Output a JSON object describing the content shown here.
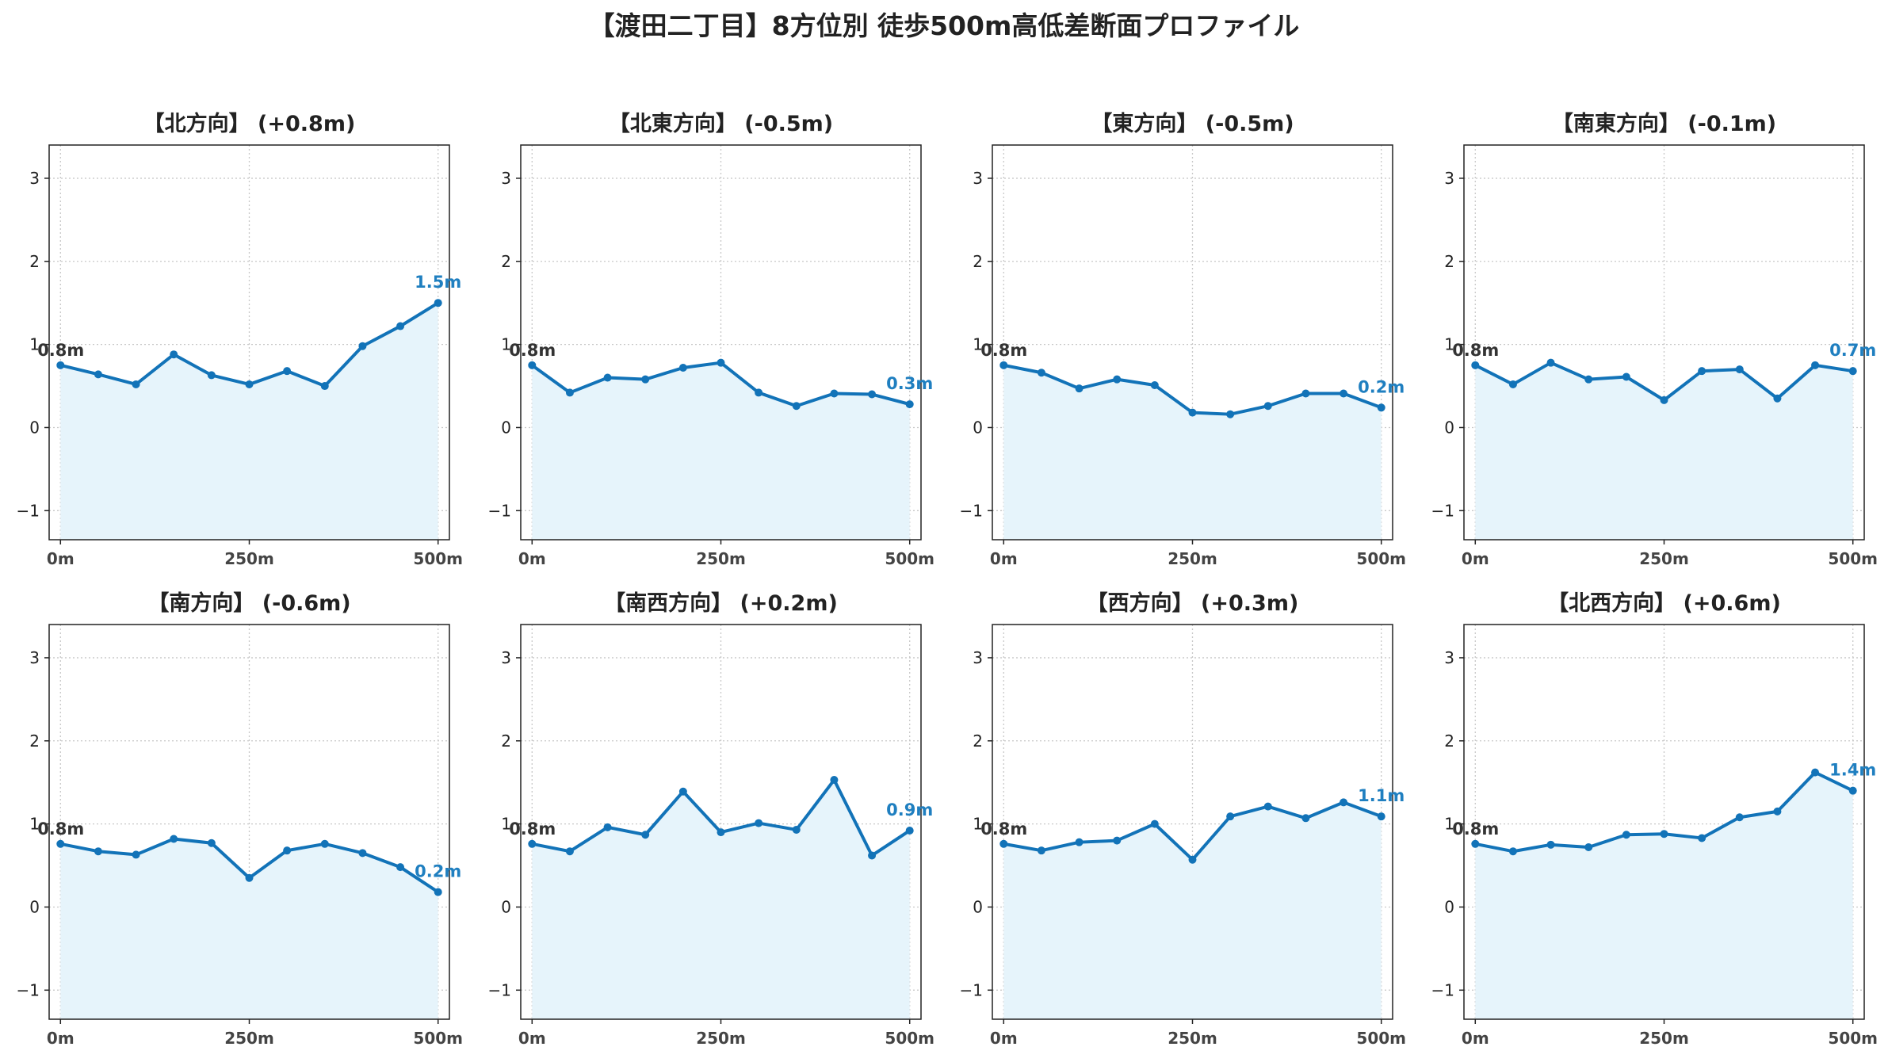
{
  "title": "【渡田二丁目】8方位別 徒歩500m高低差断面プロファイル",
  "colors": {
    "line": "#1273b8",
    "fill": "#e6f4fb",
    "grid": "#c8c8c8",
    "end_label": "#1f7fc0",
    "start_label": "#333333"
  },
  "chart_data": [
    {
      "type": "line",
      "title": "【北方向】 (+0.8m)",
      "x": [
        0,
        50,
        100,
        150,
        200,
        250,
        300,
        350,
        400,
        450,
        500
      ],
      "y": [
        0.75,
        0.64,
        0.52,
        0.88,
        0.63,
        0.52,
        0.68,
        0.5,
        0.98,
        1.22,
        1.5
      ],
      "x_ticks": [
        "0m",
        "250m",
        "500m"
      ],
      "y_ticks": [
        "−1",
        "0",
        "1",
        "2",
        "3"
      ],
      "ylim": [
        -1.35,
        3.4
      ],
      "grid": true,
      "start_label": "0.8m",
      "end_label": "1.5m"
    },
    {
      "type": "line",
      "title": "【北東方向】 (-0.5m)",
      "x": [
        0,
        50,
        100,
        150,
        200,
        250,
        300,
        350,
        400,
        450,
        500
      ],
      "y": [
        0.75,
        0.42,
        0.6,
        0.58,
        0.72,
        0.78,
        0.42,
        0.26,
        0.41,
        0.4,
        0.28
      ],
      "x_ticks": [
        "0m",
        "250m",
        "500m"
      ],
      "y_ticks": [
        "−1",
        "0",
        "1",
        "2",
        "3"
      ],
      "ylim": [
        -1.35,
        3.4
      ],
      "grid": true,
      "start_label": "0.8m",
      "end_label": "0.3m"
    },
    {
      "type": "line",
      "title": "【東方向】 (-0.5m)",
      "x": [
        0,
        50,
        100,
        150,
        200,
        250,
        300,
        350,
        400,
        450,
        500
      ],
      "y": [
        0.75,
        0.66,
        0.47,
        0.58,
        0.51,
        0.18,
        0.16,
        0.26,
        0.41,
        0.41,
        0.24
      ],
      "x_ticks": [
        "0m",
        "250m",
        "500m"
      ],
      "y_ticks": [
        "−1",
        "0",
        "1",
        "2",
        "3"
      ],
      "ylim": [
        -1.35,
        3.4
      ],
      "grid": true,
      "start_label": "0.8m",
      "end_label": "0.2m"
    },
    {
      "type": "line",
      "title": "【南東方向】 (-0.1m)",
      "x": [
        0,
        50,
        100,
        150,
        200,
        250,
        300,
        350,
        400,
        450,
        500
      ],
      "y": [
        0.75,
        0.52,
        0.78,
        0.58,
        0.61,
        0.33,
        0.68,
        0.7,
        0.35,
        0.75,
        0.68
      ],
      "x_ticks": [
        "0m",
        "250m",
        "500m"
      ],
      "y_ticks": [
        "−1",
        "0",
        "1",
        "2",
        "3"
      ],
      "ylim": [
        -1.35,
        3.4
      ],
      "grid": true,
      "start_label": "0.8m",
      "end_label": "0.7m"
    },
    {
      "type": "line",
      "title": "【南方向】 (-0.6m)",
      "x": [
        0,
        50,
        100,
        150,
        200,
        250,
        300,
        350,
        400,
        450,
        500
      ],
      "y": [
        0.76,
        0.67,
        0.63,
        0.82,
        0.77,
        0.35,
        0.68,
        0.76,
        0.65,
        0.48,
        0.18
      ],
      "x_ticks": [
        "0m",
        "250m",
        "500m"
      ],
      "y_ticks": [
        "−1",
        "0",
        "1",
        "2",
        "3"
      ],
      "ylim": [
        -1.35,
        3.4
      ],
      "grid": true,
      "start_label": "0.8m",
      "end_label": "0.2m"
    },
    {
      "type": "line",
      "title": "【南西方向】 (+0.2m)",
      "x": [
        0,
        50,
        100,
        150,
        200,
        250,
        300,
        350,
        400,
        450,
        500
      ],
      "y": [
        0.76,
        0.67,
        0.96,
        0.87,
        1.39,
        0.9,
        1.01,
        0.93,
        1.53,
        0.62,
        0.92
      ],
      "x_ticks": [
        "0m",
        "250m",
        "500m"
      ],
      "y_ticks": [
        "−1",
        "0",
        "1",
        "2",
        "3"
      ],
      "ylim": [
        -1.35,
        3.4
      ],
      "grid": true,
      "start_label": "0.8m",
      "end_label": "0.9m"
    },
    {
      "type": "line",
      "title": "【西方向】 (+0.3m)",
      "x": [
        0,
        50,
        100,
        150,
        200,
        250,
        300,
        350,
        400,
        450,
        500
      ],
      "y": [
        0.76,
        0.68,
        0.78,
        0.8,
        1.0,
        0.57,
        1.09,
        1.21,
        1.07,
        1.26,
        1.09
      ],
      "x_ticks": [
        "0m",
        "250m",
        "500m"
      ],
      "y_ticks": [
        "−1",
        "0",
        "1",
        "2",
        "3"
      ],
      "ylim": [
        -1.35,
        3.4
      ],
      "grid": true,
      "start_label": "0.8m",
      "end_label": "1.1m"
    },
    {
      "type": "line",
      "title": "【北西方向】 (+0.6m)",
      "x": [
        0,
        50,
        100,
        150,
        200,
        250,
        300,
        350,
        400,
        450,
        500
      ],
      "y": [
        0.76,
        0.67,
        0.75,
        0.72,
        0.87,
        0.88,
        0.83,
        1.08,
        1.15,
        1.62,
        1.4
      ],
      "x_ticks": [
        "0m",
        "250m",
        "500m"
      ],
      "y_ticks": [
        "−1",
        "0",
        "1",
        "2",
        "3"
      ],
      "ylim": [
        -1.35,
        3.4
      ],
      "grid": true,
      "start_label": "0.8m",
      "end_label": "1.4m"
    }
  ]
}
